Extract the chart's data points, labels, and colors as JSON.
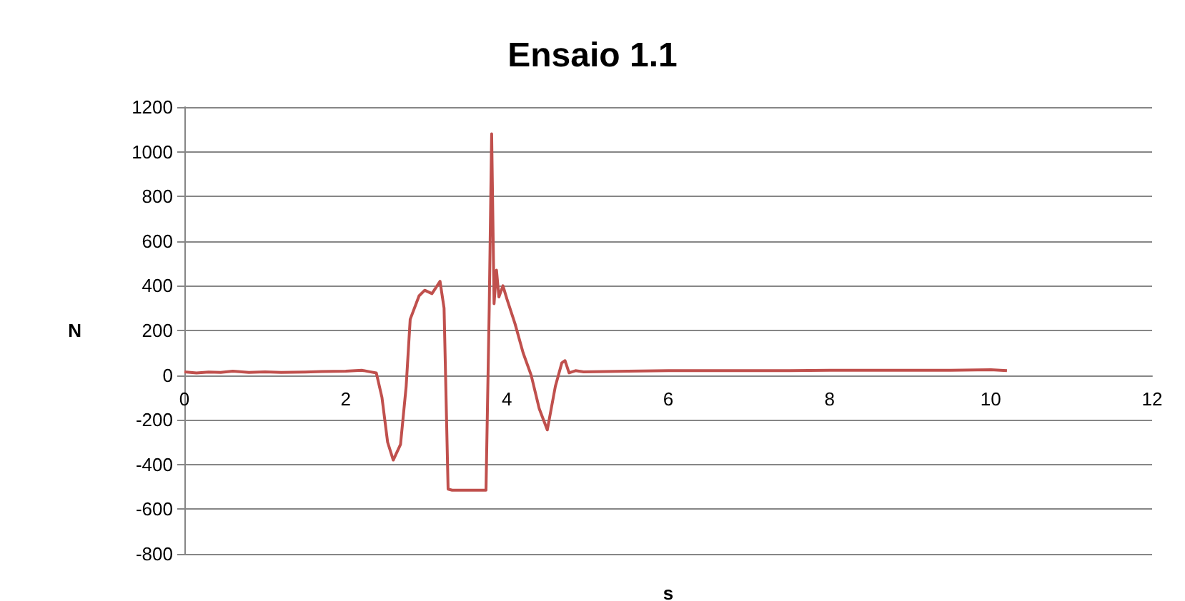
{
  "chart_data": {
    "type": "line",
    "title": "Ensaio 1.1",
    "xlabel": "s",
    "ylabel": "N",
    "series": [
      {
        "color": "#c0504d",
        "x": [
          0,
          0.15,
          0.3,
          0.45,
          0.6,
          0.8,
          1,
          1.2,
          1.5,
          1.7,
          2,
          2.2,
          2.3,
          2.38,
          2.45,
          2.52,
          2.59,
          2.68,
          2.75,
          2.8,
          2.91,
          2.98,
          3.07,
          3.17,
          3.22,
          3.27,
          3.32,
          3.5,
          3.74,
          3.78,
          3.81,
          3.84,
          3.87,
          3.9,
          3.95,
          4,
          4.1,
          4.2,
          4.3,
          4.4,
          4.5,
          4.6,
          4.68,
          4.72,
          4.77,
          4.85,
          4.95,
          5.5,
          6,
          6.5,
          7,
          7.5,
          8,
          8.5,
          9,
          9.5,
          10,
          10.2
        ],
        "values": [
          15,
          10,
          14,
          12,
          18,
          12,
          15,
          12,
          14,
          16,
          18,
          22,
          15,
          10,
          -100,
          -300,
          -380,
          -310,
          -50,
          250,
          355,
          380,
          365,
          420,
          300,
          -510,
          -515,
          -515,
          -515,
          300,
          1080,
          320,
          470,
          350,
          400,
          340,
          230,
          100,
          0,
          -150,
          -245,
          -50,
          55,
          65,
          10,
          20,
          15,
          18,
          20,
          20,
          20,
          20,
          22,
          22,
          22,
          22,
          24,
          20
        ]
      }
    ],
    "xlim": [
      0,
      12
    ],
    "xticks": [
      0,
      2,
      4,
      6,
      8,
      10,
      12
    ],
    "ylim": [
      -800,
      1200
    ],
    "yticks": [
      -800,
      -600,
      -400,
      -200,
      0,
      200,
      400,
      600,
      800,
      1000,
      1200
    ],
    "grid": "y",
    "marker": "none",
    "line_style": "solid"
  }
}
